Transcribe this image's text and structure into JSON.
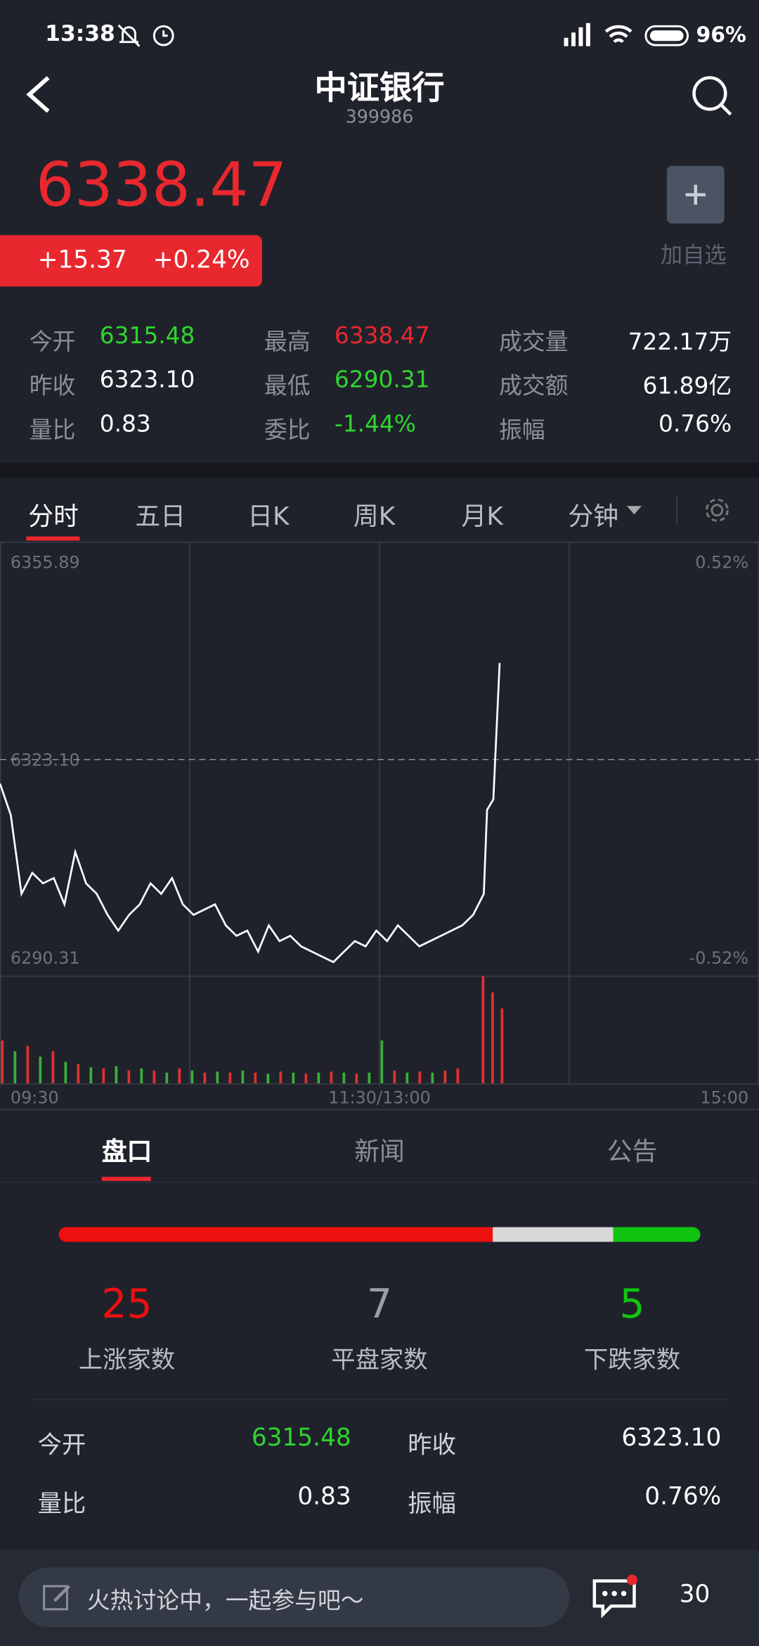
{
  "status_bar": {
    "time": "13:38",
    "battery": "96%"
  },
  "header": {
    "title": "中证银行",
    "code": "399986"
  },
  "quote": {
    "price": "6338.47",
    "change": "+15.37",
    "change_percent": "+0.24%",
    "watchlist_label": "加自选"
  },
  "stats": [
    [
      {
        "label": "今开",
        "value": "6315.48",
        "color": "#2fd52f"
      },
      {
        "label": "最高",
        "value": "6338.47",
        "color": "#e8282e"
      },
      {
        "label": "成交量",
        "value": "722.17万",
        "color": "#ffffff"
      }
    ],
    [
      {
        "label": "昨收",
        "value": "6323.10",
        "color": "#ffffff"
      },
      {
        "label": "最低",
        "value": "6290.31",
        "color": "#2fd52f"
      },
      {
        "label": "成交额",
        "value": "61.89亿",
        "color": "#ffffff"
      }
    ],
    [
      {
        "label": "量比",
        "value": "0.83",
        "color": "#ffffff"
      },
      {
        "label": "委比",
        "value": "-1.44%",
        "color": "#2fd52f"
      },
      {
        "label": "振幅",
        "value": "0.76%",
        "color": "#ffffff"
      }
    ]
  ],
  "tabs": [
    "分时",
    "五日",
    "日K",
    "周K",
    "月K",
    "分钟"
  ],
  "chart_data": {
    "type": "line",
    "color": "#ffffff",
    "x": [
      0,
      3.4,
      6.8,
      10.2,
      13.6,
      17,
      20.4,
      23.8,
      27.2,
      30.6,
      34,
      37.4,
      40.8,
      44.2,
      47.6,
      51,
      54.4,
      57.8,
      61.2,
      64.6,
      68,
      71.4,
      74.8,
      78.2,
      81.6,
      85,
      88.4,
      91.8,
      95.2,
      98.6,
      102,
      105.4,
      108.8,
      112.2,
      115.6,
      119,
      122.4,
      125.8,
      129.2,
      132.6,
      136,
      139.4,
      142.8,
      146.2,
      149.6,
      153,
      154,
      156,
      158
    ],
    "values": [
      6319.45,
      6314.68,
      6302.77,
      6305.95,
      6304.36,
      6305.16,
      6301.19,
      6309.13,
      6304.36,
      6302.77,
      6299.6,
      6297.22,
      6299.6,
      6301.19,
      6304.36,
      6302.77,
      6305.16,
      6301.19,
      6299.6,
      6300.39,
      6301.19,
      6298.01,
      6296.42,
      6297.22,
      6294.04,
      6298.01,
      6295.63,
      6296.42,
      6294.83,
      6294.04,
      6293.25,
      6292.45,
      6294.04,
      6295.63,
      6294.83,
      6297.22,
      6295.63,
      6298.01,
      6296.42,
      6294.83,
      6295.63,
      6296.42,
      6297.22,
      6298.01,
      6299.6,
      6302.77,
      6315.48,
      6317.07,
      6337.71
    ],
    "xlim": [
      0,
      240
    ],
    "xticks": [
      {
        "value": 0,
        "label": "09:30"
      },
      {
        "value": 120,
        "label": "11:30/13:00"
      },
      {
        "value": 240,
        "label": "15:00"
      }
    ],
    "ylim": [
      6290.31,
      6355.89
    ],
    "yticks": [
      6290.31,
      {
        "value": 6323.1,
        "label": "6323.10"
      },
      6355.89
    ],
    "y2lim": [
      -0.52,
      0.52
    ],
    "y2ticks": [
      {
        "value": -0.52,
        "label": "-0.52%"
      },
      {
        "value": 0.52,
        "label": "0.52%"
      }
    ],
    "volume": {
      "ylim": [
        0,
        100
      ],
      "x": [
        0,
        4,
        8,
        12,
        16,
        20,
        24,
        28,
        32,
        36,
        40,
        44,
        48,
        52,
        56,
        60,
        64,
        68,
        72,
        76,
        80,
        84,
        88,
        92,
        96,
        100,
        104,
        108,
        112,
        116,
        120,
        124,
        128,
        132,
        136,
        140,
        144,
        152,
        155,
        158
      ],
      "values": [
        40,
        30,
        35,
        25,
        30,
        20,
        18,
        15,
        14,
        16,
        12,
        14,
        12,
        10,
        14,
        12,
        10,
        11,
        10,
        12,
        10,
        9,
        11,
        10,
        9,
        10,
        11,
        10,
        9,
        10,
        40,
        12,
        10,
        11,
        10,
        12,
        14,
        100,
        85,
        70
      ],
      "colors": [
        "#e03030",
        "#3ab03a",
        "#e03030",
        "#3ab03a",
        "#e03030",
        "#3ab03a",
        "#e03030",
        "#3ab03a",
        "#e03030",
        "#3ab03a",
        "#e03030",
        "#3ab03a",
        "#e03030",
        "#3ab03a",
        "#e03030",
        "#3ab03a",
        "#e03030",
        "#3ab03a",
        "#e03030",
        "#3ab03a",
        "#e03030",
        "#3ab03a",
        "#e03030",
        "#3ab03a",
        "#e03030",
        "#3ab03a",
        "#e03030",
        "#3ab03a",
        "#e03030",
        "#3ab03a",
        "#3ab03a",
        "#e03030",
        "#3ab03a",
        "#e03030",
        "#3ab03a",
        "#e03030",
        "#e03030",
        "#e03030",
        "#e03030",
        "#e03030"
      ]
    }
  },
  "sub_tabs": [
    "盘口",
    "新闻",
    "公告"
  ],
  "breadth": [
    {
      "count": 25,
      "label": "上涨家数",
      "color": "#ee0f0f"
    },
    {
      "count": 7,
      "label": "平盘家数",
      "color": "#d8d8d8"
    },
    {
      "count": 5,
      "label": "下跌家数",
      "color": "#11c411"
    }
  ],
  "details": [
    [
      {
        "label": "今开",
        "value": "6315.48",
        "color": "#2fd52f"
      },
      {
        "label": "昨收",
        "value": "6323.10",
        "color": "#ffffff"
      }
    ],
    [
      {
        "label": "量比",
        "value": "0.83",
        "color": "#ffffff"
      },
      {
        "label": "振幅",
        "value": "0.76%",
        "color": "#ffffff"
      }
    ]
  ],
  "comment_bar": {
    "placeholder": "火热讨论中，一起参与吧～",
    "count": "30"
  }
}
